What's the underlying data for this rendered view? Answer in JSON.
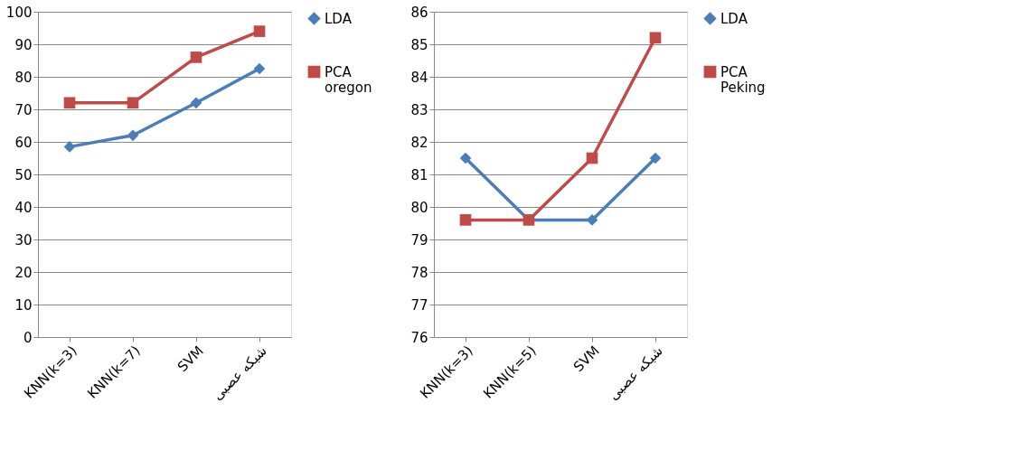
{
  "chart_data": [
    {
      "type": "line",
      "categories": [
        "KNN(k=3)",
        "KNN(k=7)",
        "SVM",
        "شبکه عصبی"
      ],
      "ylim": [
        0,
        100
      ],
      "yticks": [
        0,
        10,
        20,
        30,
        40,
        50,
        60,
        70,
        80,
        90,
        100
      ],
      "grid": "y",
      "legend": "right",
      "line_style": "solid",
      "series": [
        {
          "name": "LDA",
          "color": "#4a7ebb",
          "marker": "diamond",
          "values": [
            58.5,
            62,
            72,
            82.5
          ]
        },
        {
          "name": "PCA oregon",
          "color": "#be4b48",
          "marker": "square",
          "values": [
            72,
            72,
            86,
            94
          ]
        }
      ]
    },
    {
      "type": "line",
      "categories": [
        "KNN(k=3)",
        "KNN(k=5)",
        "SVM",
        "شبکه عصبی"
      ],
      "ylim": [
        76,
        86
      ],
      "yticks": [
        76,
        77,
        78,
        79,
        80,
        81,
        82,
        83,
        84,
        85,
        86
      ],
      "grid": "y",
      "legend": "right",
      "line_style": "solid",
      "series": [
        {
          "name": "LDA",
          "color": "#4a7ebb",
          "marker": "diamond",
          "values": [
            81.5,
            79.6,
            79.6,
            81.5
          ]
        },
        {
          "name": "PCA Peking",
          "color": "#be4b48",
          "marker": "square",
          "values": [
            79.6,
            79.6,
            81.5,
            85.2
          ]
        }
      ]
    }
  ]
}
